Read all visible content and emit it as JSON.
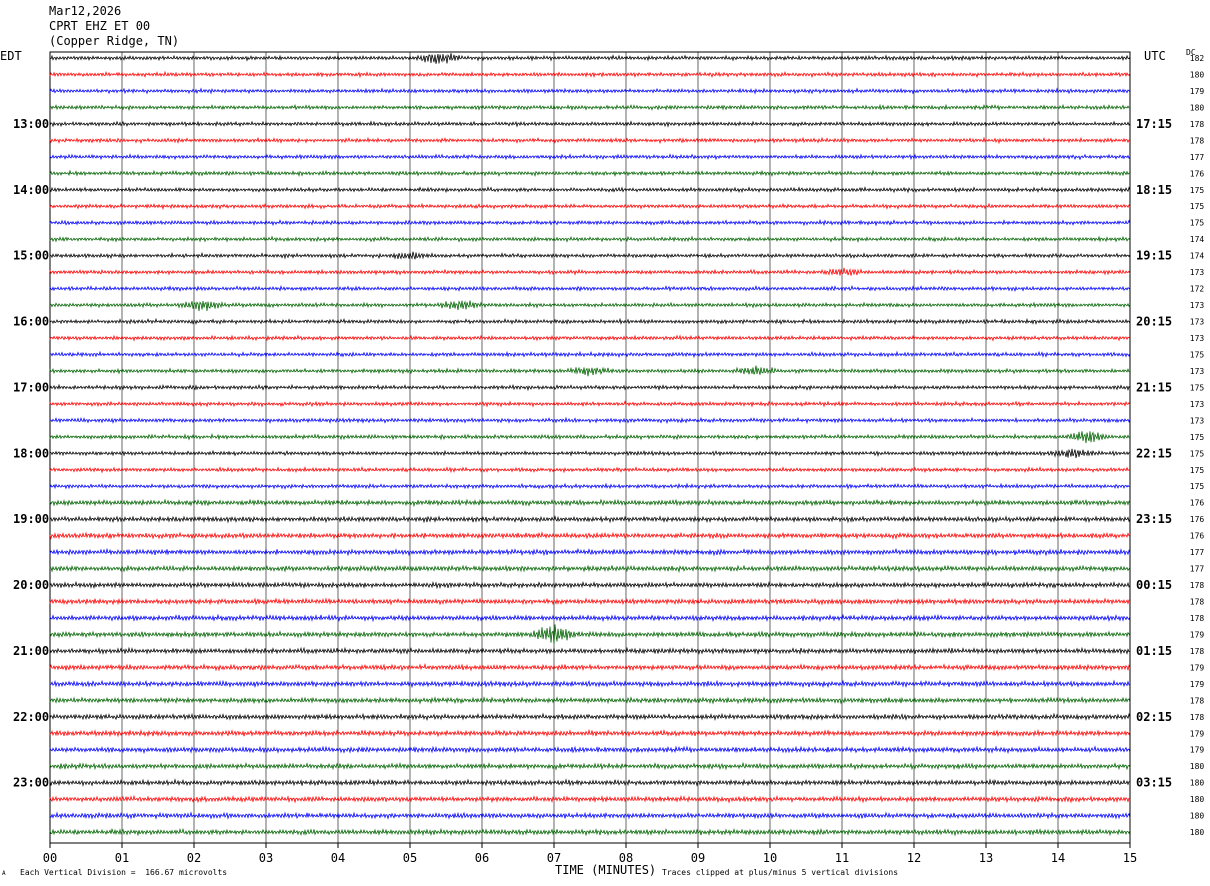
{
  "header": {
    "date": "Mar12,2026",
    "station": "CPRT EHZ ET 00",
    "location": "(Copper Ridge, TN)"
  },
  "left_timezone": "EDT",
  "right_timezone": "UTC",
  "dc_label": "DC",
  "footer": {
    "division_note": "Each Vertical Division =  166.67 microvolts",
    "clip_note": "Traces clipped at plus/minus 5 vertical divisions",
    "corner_mark": "A"
  },
  "chart_data": {
    "type": "line",
    "xlabel": "TIME (MINUTES)",
    "x_ticks": [
      "00",
      "01",
      "02",
      "03",
      "04",
      "05",
      "06",
      "07",
      "08",
      "09",
      "10",
      "11",
      "12",
      "13",
      "14",
      "15"
    ],
    "xlim": [
      0,
      15
    ],
    "grid": true,
    "colors": [
      "#000000",
      "#ff0000",
      "#0000ff",
      "#006400"
    ],
    "left_hour_labels": [
      "13:00",
      "14:00",
      "15:00",
      "16:00",
      "17:00",
      "18:00",
      "19:00",
      "20:00",
      "21:00",
      "22:00",
      "23:00"
    ],
    "right_hour_labels": [
      "17:15",
      "18:15",
      "19:15",
      "20:15",
      "21:15",
      "22:15",
      "23:15",
      "00:15",
      "01:15",
      "02:15",
      "03:15"
    ],
    "hour_label_start_trace": 4,
    "dc_offsets": [
      182,
      180,
      179,
      180,
      178,
      178,
      177,
      176,
      175,
      175,
      175,
      174,
      174,
      173,
      172,
      173,
      173,
      173,
      175,
      173,
      175,
      173,
      173,
      175,
      175,
      175,
      175,
      176,
      176,
      176,
      177,
      177,
      178,
      178,
      178,
      179,
      178,
      179,
      179,
      178,
      178,
      179,
      179,
      180,
      180,
      180,
      180,
      180
    ],
    "trace_count": 48,
    "events": [
      {
        "trace": 0,
        "minute": 5.4,
        "amplitude": 6
      },
      {
        "trace": 15,
        "minute": 2.1,
        "amplitude": 5
      },
      {
        "trace": 15,
        "minute": 5.7,
        "amplitude": 4
      },
      {
        "trace": 19,
        "minute": 7.5,
        "amplitude": 4
      },
      {
        "trace": 19,
        "minute": 9.8,
        "amplitude": 4
      },
      {
        "trace": 23,
        "minute": 14.4,
        "amplitude": 6
      },
      {
        "trace": 24,
        "minute": 14.2,
        "amplitude": 4
      },
      {
        "trace": 35,
        "minute": 7.0,
        "amplitude": 10
      },
      {
        "trace": 12,
        "minute": 5.0,
        "amplitude": 3
      },
      {
        "trace": 13,
        "minute": 11.0,
        "amplitude": 3
      }
    ]
  }
}
